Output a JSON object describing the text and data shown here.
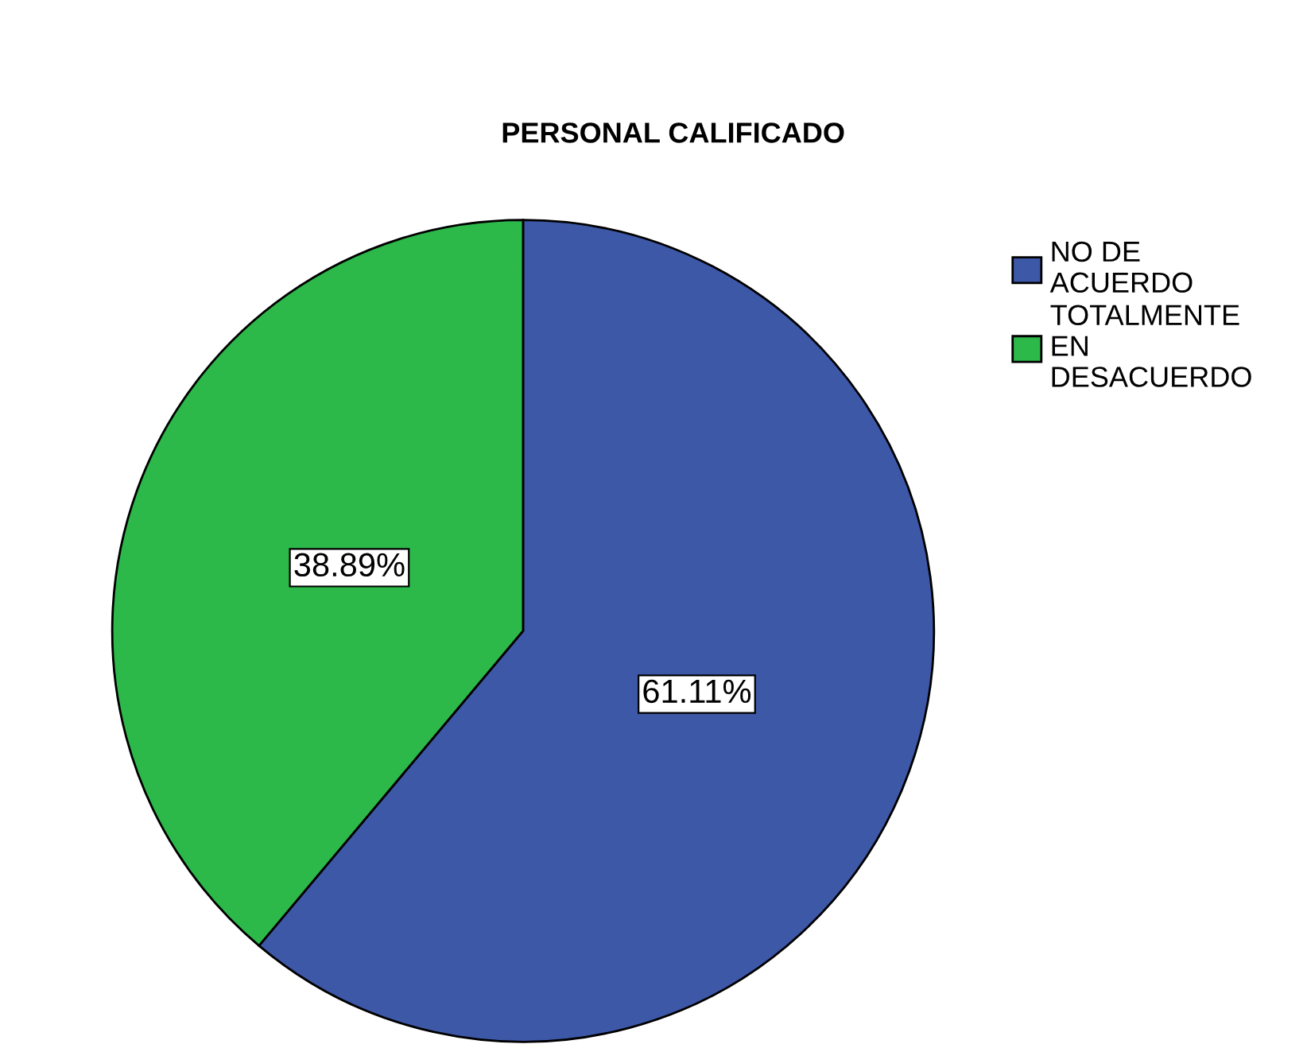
{
  "chart_data": {
    "type": "pie",
    "title": "PERSONAL CALIFICADO",
    "categories": [
      "NO DE\nACUERDO",
      "TOTALMENTE\nEN\nDESACUERDO"
    ],
    "values": [
      61.11,
      38.89
    ],
    "colors": [
      "#3e58a8",
      "#2db84a"
    ],
    "value_labels": [
      "61.11%",
      "38.89%"
    ],
    "legend": "top right"
  }
}
